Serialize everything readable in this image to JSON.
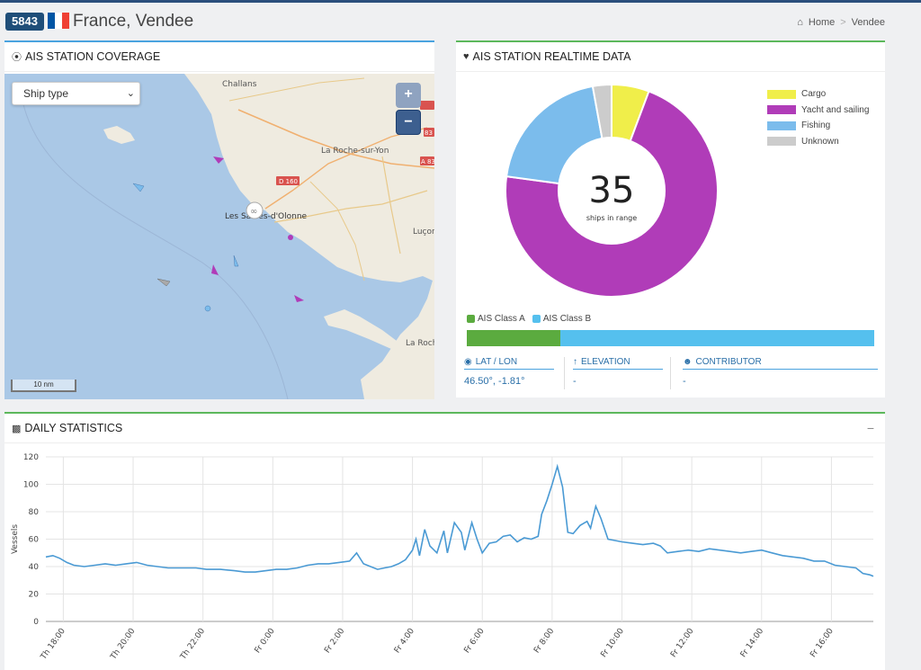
{
  "header": {
    "station_id": "5843",
    "title": "France, Vendee",
    "breadcrumb": {
      "home": "Home",
      "sep": ">",
      "current": "Vendee"
    }
  },
  "flag_colors": [
    "#0055a4",
    "#ffffff",
    "#ef4135"
  ],
  "coverage": {
    "title": "AIS STATION COVERAGE",
    "ship_type_select": "Ship type",
    "zoom_in": "+",
    "zoom_out": "−",
    "scale": "10 nm",
    "places": {
      "challans": "Challans",
      "roche": "La Roche-sur-Yon",
      "sables": "Les Sables-d'Olonne",
      "lucon": "Luçon",
      "rochelle": "La Roch",
      "d160": "D 160",
      "a83a": "A 83",
      "a83b": "A 83",
      "r83": "83"
    }
  },
  "realtime": {
    "title": "AIS STATION REALTIME DATA",
    "ships_in_range": "35",
    "ships_in_range_label": "ships in range",
    "legend": [
      {
        "label": "Cargo",
        "color": "#f0ee4a"
      },
      {
        "label": "Yacht and sailing",
        "color": "#b03cb8"
      },
      {
        "label": "Fishing",
        "color": "#7bbcec"
      },
      {
        "label": "Unknown",
        "color": "#cccccc"
      }
    ],
    "slices": [
      {
        "label": "Cargo",
        "value": 2,
        "color": "#f0ee4a"
      },
      {
        "label": "Yacht and sailing",
        "value": 25,
        "color": "#b03cb8"
      },
      {
        "label": "Fishing",
        "value": 7,
        "color": "#7bbcec"
      },
      {
        "label": "Unknown",
        "value": 1,
        "color": "#cccccc"
      }
    ],
    "class_legend": [
      {
        "label": "AIS Class A",
        "color": "#5bab3f"
      },
      {
        "label": "AIS Class B",
        "color": "#55c0ee"
      }
    ],
    "class_split": {
      "class_a_fraction": 0.23
    },
    "lat_lon_label": "LAT / LON",
    "lat_lon_value": "46.50°, -1.81°",
    "elevation_label": "ELEVATION",
    "elevation_value": "-",
    "contributor_label": "CONTRIBUTOR",
    "contributor_value": "-"
  },
  "daily": {
    "title": "DAILY STATISTICS",
    "collapse": "−"
  },
  "chart_data": {
    "type": "line",
    "title": "",
    "xlabel": "",
    "ylabel": "Vessels",
    "ylim": [
      0,
      120
    ],
    "yticks": [
      0,
      20,
      40,
      60,
      80,
      100,
      120
    ],
    "xlim": [
      17.5,
      41.2
    ],
    "xticks": [
      {
        "x": 18,
        "label": "Th 18:00"
      },
      {
        "x": 20,
        "label": "Th 20:00"
      },
      {
        "x": 22,
        "label": "Th 22:00"
      },
      {
        "x": 24,
        "label": "Fr 0:00"
      },
      {
        "x": 26,
        "label": "Fr 2:00"
      },
      {
        "x": 28,
        "label": "Fr 4:00"
      },
      {
        "x": 30,
        "label": "Fr 6:00"
      },
      {
        "x": 32,
        "label": "Fr 8:00"
      },
      {
        "x": 34,
        "label": "Fr 10:00"
      },
      {
        "x": 36,
        "label": "Fr 12:00"
      },
      {
        "x": 38,
        "label": "Fr 14:00"
      },
      {
        "x": 40,
        "label": "Fr 16:00"
      }
    ],
    "grid": true,
    "series": [
      {
        "color": "#4a9ad4",
        "points": [
          [
            17.5,
            47
          ],
          [
            17.7,
            48
          ],
          [
            17.9,
            46
          ],
          [
            18.1,
            43
          ],
          [
            18.3,
            41
          ],
          [
            18.6,
            40
          ],
          [
            18.9,
            41
          ],
          [
            19.2,
            42
          ],
          [
            19.5,
            41
          ],
          [
            19.8,
            42
          ],
          [
            20.1,
            43
          ],
          [
            20.4,
            41
          ],
          [
            20.7,
            40
          ],
          [
            21.0,
            39
          ],
          [
            21.4,
            39
          ],
          [
            21.8,
            39
          ],
          [
            22.1,
            38
          ],
          [
            22.5,
            38
          ],
          [
            22.9,
            37
          ],
          [
            23.2,
            36
          ],
          [
            23.5,
            36
          ],
          [
            23.8,
            37
          ],
          [
            24.1,
            38
          ],
          [
            24.4,
            38
          ],
          [
            24.7,
            39
          ],
          [
            25.0,
            41
          ],
          [
            25.3,
            42
          ],
          [
            25.6,
            42
          ],
          [
            25.9,
            43
          ],
          [
            26.2,
            44
          ],
          [
            26.4,
            50
          ],
          [
            26.6,
            42
          ],
          [
            26.8,
            40
          ],
          [
            27.0,
            38
          ],
          [
            27.2,
            39
          ],
          [
            27.4,
            40
          ],
          [
            27.6,
            42
          ],
          [
            27.8,
            45
          ],
          [
            28.0,
            52
          ],
          [
            28.1,
            60
          ],
          [
            28.2,
            48
          ],
          [
            28.35,
            67
          ],
          [
            28.5,
            55
          ],
          [
            28.7,
            50
          ],
          [
            28.9,
            66
          ],
          [
            29.0,
            50
          ],
          [
            29.2,
            72
          ],
          [
            29.4,
            65
          ],
          [
            29.5,
            52
          ],
          [
            29.7,
            72
          ],
          [
            29.85,
            60
          ],
          [
            30.0,
            50
          ],
          [
            30.2,
            57
          ],
          [
            30.4,
            58
          ],
          [
            30.6,
            62
          ],
          [
            30.8,
            63
          ],
          [
            31.0,
            58
          ],
          [
            31.2,
            61
          ],
          [
            31.4,
            60
          ],
          [
            31.6,
            62
          ],
          [
            31.7,
            78
          ],
          [
            31.85,
            88
          ],
          [
            32.0,
            100
          ],
          [
            32.15,
            113
          ],
          [
            32.3,
            98
          ],
          [
            32.45,
            65
          ],
          [
            32.6,
            64
          ],
          [
            32.8,
            70
          ],
          [
            33.0,
            73
          ],
          [
            33.1,
            68
          ],
          [
            33.25,
            84
          ],
          [
            33.4,
            75
          ],
          [
            33.6,
            60
          ],
          [
            33.8,
            59
          ],
          [
            34.0,
            58
          ],
          [
            34.3,
            57
          ],
          [
            34.6,
            56
          ],
          [
            34.9,
            57
          ],
          [
            35.1,
            55
          ],
          [
            35.3,
            50
          ],
          [
            35.6,
            51
          ],
          [
            35.9,
            52
          ],
          [
            36.2,
            51
          ],
          [
            36.5,
            53
          ],
          [
            36.8,
            52
          ],
          [
            37.1,
            51
          ],
          [
            37.4,
            50
          ],
          [
            37.7,
            51
          ],
          [
            38.0,
            52
          ],
          [
            38.3,
            50
          ],
          [
            38.6,
            48
          ],
          [
            38.9,
            47
          ],
          [
            39.2,
            46
          ],
          [
            39.5,
            44
          ],
          [
            39.8,
            44
          ],
          [
            40.1,
            41
          ],
          [
            40.4,
            40
          ],
          [
            40.7,
            39
          ],
          [
            40.9,
            35
          ],
          [
            41.1,
            34
          ],
          [
            41.2,
            33
          ]
        ]
      }
    ]
  }
}
